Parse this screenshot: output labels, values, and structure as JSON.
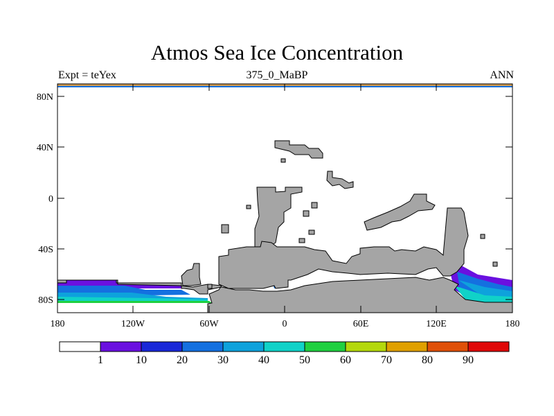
{
  "title": "Atmos Sea Ice Concentration",
  "left_string": "Expt = teYex",
  "center_string": "375_0_MaBP",
  "right_string": "ANN",
  "y_axis_ticks": [
    "80N",
    "40N",
    "0",
    "40S",
    "80S"
  ],
  "x_axis_ticks": [
    "180",
    "120W",
    "60W",
    "0",
    "60E",
    "120E",
    "180"
  ],
  "colorbar": {
    "labels": [
      "1",
      "10",
      "20",
      "30",
      "40",
      "50",
      "60",
      "70",
      "80",
      "90"
    ],
    "colors": [
      "#ffffff",
      "#6a10e0",
      "#1a28d8",
      "#1470e0",
      "#0ea2dc",
      "#10d2c8",
      "#20d040",
      "#b4d80c",
      "#e0a000",
      "#e05008",
      "#e00808"
    ]
  },
  "colors": {
    "land": "#a5a5a5",
    "ocean": "#ffffff",
    "ice_1": "#6a10e0",
    "ice_20": "#1470e0",
    "ice_30": "#0ea2dc",
    "ice_40": "#10d2c8",
    "ice_50": "#20d040",
    "arctic_band": "#d09a50"
  }
}
